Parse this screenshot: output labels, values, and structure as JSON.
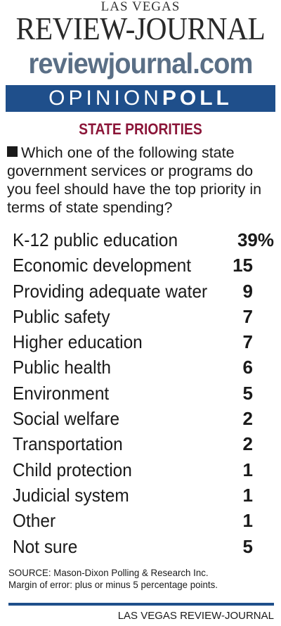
{
  "header": {
    "kicker": "LAS VEGAS",
    "masthead": "REVIEW-JOURNAL",
    "site": "reviewjournal.com"
  },
  "banner": {
    "part1": "OPINION",
    "part2": "POLL"
  },
  "subtitle": "STATE PRIORITIES",
  "question": "Which one of the following state government services or programs do you feel should have the top priority in terms of state spending?",
  "chart_data": {
    "type": "table",
    "title": "STATE PRIORITIES",
    "unit": "%",
    "categories": [
      "K-12 public education",
      "Economic development",
      "Providing adequate water",
      "Public safety",
      "Higher education",
      "Public health",
      "Environment",
      "Social welfare",
      "Transportation",
      "Child protection",
      "Judicial system",
      "Other",
      "Not sure"
    ],
    "values": [
      39,
      15,
      9,
      7,
      7,
      6,
      5,
      2,
      2,
      1,
      1,
      1,
      5
    ],
    "display_values": [
      "39%",
      "15",
      "9",
      "7",
      "7",
      "6",
      "5",
      "2",
      "2",
      "1",
      "1",
      "1",
      "5"
    ]
  },
  "footer": {
    "source": "SOURCE: Mason-Dixon Polling & Research Inc.",
    "margin": "Margin of error: plus or minus 5 percentage points.",
    "credit": "LAS VEGAS REVIEW-JOURNAL"
  },
  "colors": {
    "banner": "#1f4f8b",
    "subtitle": "#8b1538",
    "site": "#5a6f86"
  }
}
